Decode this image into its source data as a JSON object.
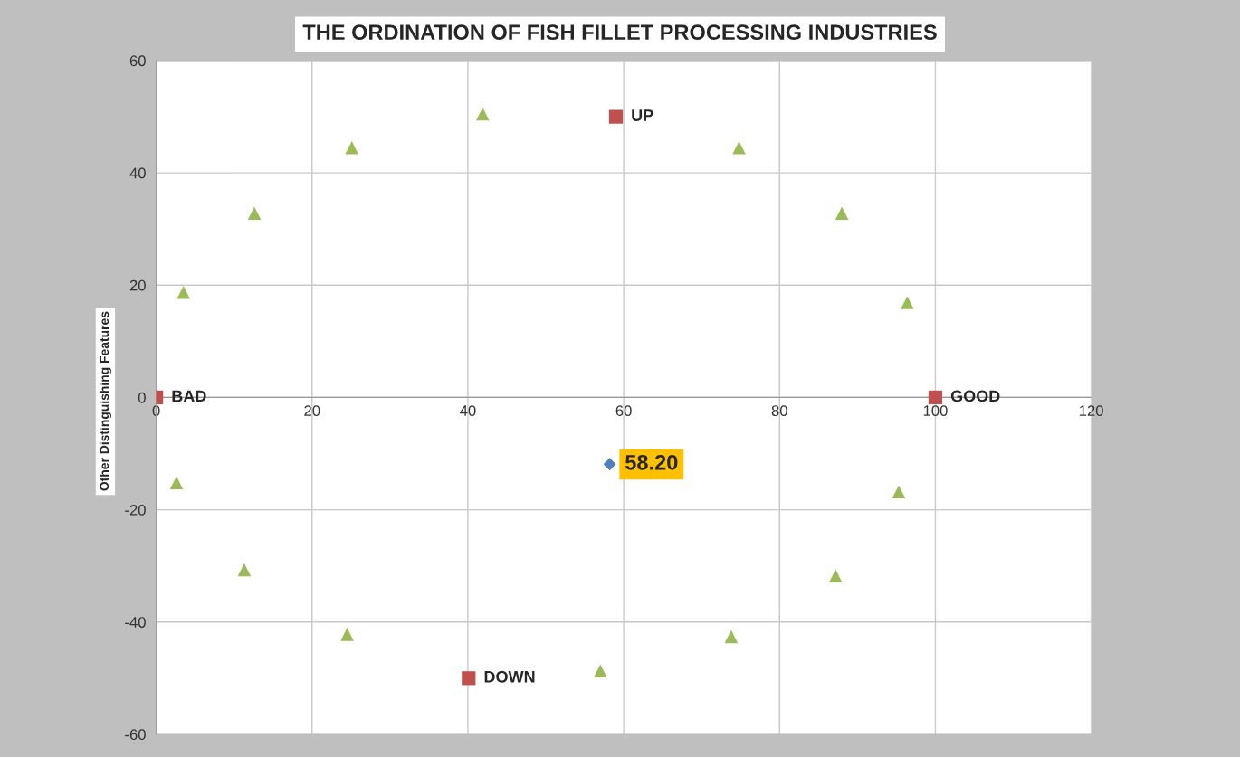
{
  "chart_data": {
    "type": "scatter",
    "title": "THE ORDINATION OF FISH FILLET PROCESSING INDUSTRIES",
    "ylabel": "Other Distinguishing Features",
    "series": [
      {
        "marker": "triangle",
        "color": "#9bbb59",
        "x": [
          3.5,
          12.6,
          25.1,
          41.9,
          74.8,
          88.0,
          96.4,
          95.3,
          87.2,
          73.8,
          57.0,
          24.5,
          11.3,
          2.6
        ],
        "values": [
          18.7,
          32.8,
          44.5,
          50.5,
          44.5,
          32.8,
          16.9,
          -16.8,
          -31.8,
          -42.6,
          -48.7,
          -42.2,
          -30.7,
          -15.2
        ]
      },
      {
        "marker": "square",
        "color": "#c0504d",
        "x": [
          0,
          100,
          59.0,
          40.1
        ],
        "values": [
          0,
          0,
          50,
          -50
        ]
      },
      {
        "marker": "diamond",
        "color": "#4f81bd",
        "x": [
          58.2
        ],
        "values": [
          -11.9
        ]
      }
    ],
    "annotations": [
      {
        "text": "BAD",
        "x": 0,
        "y": 0
      },
      {
        "text": "GOOD",
        "x": 100,
        "y": 0
      },
      {
        "text": "UP",
        "x": 59.0,
        "y": 50
      },
      {
        "text": "DOWN",
        "x": 40.1,
        "y": -50
      },
      {
        "text": "58.20",
        "x": 58.2,
        "y": -11.9
      }
    ],
    "xlim": [
      0,
      120
    ],
    "xticks": [
      0,
      20,
      40,
      60,
      80,
      100,
      120
    ],
    "ylim": [
      -60,
      60
    ],
    "yticks": [
      -60,
      -40,
      -20,
      0,
      20,
      40,
      60
    ],
    "grid": true
  }
}
